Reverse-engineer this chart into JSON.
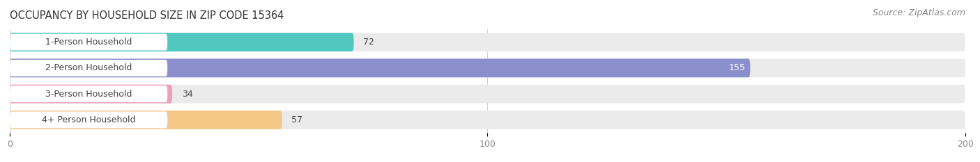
{
  "title": "OCCUPANCY BY HOUSEHOLD SIZE IN ZIP CODE 15364",
  "source": "Source: ZipAtlas.com",
  "categories": [
    "1-Person Household",
    "2-Person Household",
    "3-Person Household",
    "4+ Person Household"
  ],
  "values": [
    72,
    155,
    34,
    57
  ],
  "bar_colors": [
    "#50C8C0",
    "#8B8FCC",
    "#F0A0B8",
    "#F5C888"
  ],
  "bar_bg_color": "#EBEBEB",
  "label_bg_color": "#FFFFFF",
  "xlim": [
    0,
    200
  ],
  "xticks": [
    0,
    100,
    200
  ],
  "figsize": [
    14.06,
    2.33
  ],
  "dpi": 100,
  "title_fontsize": 10.5,
  "label_fontsize": 9,
  "tick_fontsize": 9,
  "source_fontsize": 9
}
